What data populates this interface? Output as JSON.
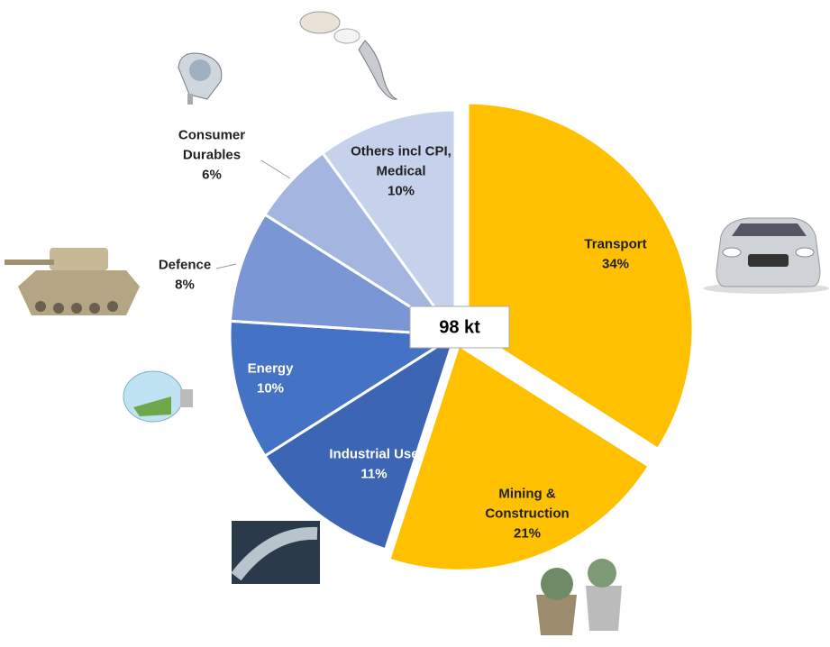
{
  "chart_data": {
    "type": "pie",
    "categories": [
      "Transport",
      "Mining & Construction",
      "Industrial Use",
      "Energy",
      "Defence",
      "Consumer Durables",
      "Others incl CPI, Medical"
    ],
    "values": [
      34,
      21,
      11,
      10,
      8,
      6,
      10
    ],
    "value_labels": [
      "34%",
      "21%",
      "11%",
      "10%",
      "8%",
      "6%",
      "10%"
    ],
    "colors": [
      "#ffc000",
      "#ffc000",
      "#3c66b4",
      "#4472c4",
      "#7b96d4",
      "#a4b6e0",
      "#c6d2ec"
    ],
    "center_label": "98 kt"
  }
}
